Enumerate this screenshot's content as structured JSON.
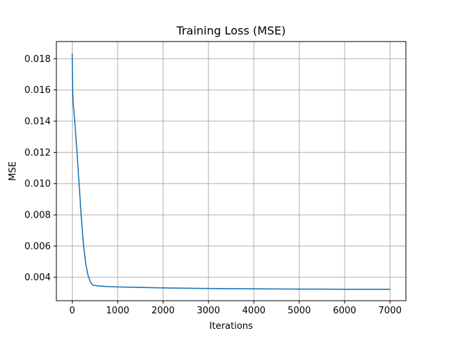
{
  "chart_data": {
    "type": "line",
    "title": "Training Loss (MSE)",
    "xlabel": "Iterations",
    "ylabel": "MSE",
    "xlim": [
      -350,
      7350
    ],
    "ylim": [
      0.0025,
      0.0191
    ],
    "x_ticks": [
      0,
      1000,
      2000,
      3000,
      4000,
      5000,
      6000,
      7000
    ],
    "x_tick_labels": [
      "0",
      "1000",
      "2000",
      "3000",
      "4000",
      "5000",
      "6000",
      "7000"
    ],
    "y_ticks": [
      0.004,
      0.006,
      0.008,
      0.01,
      0.012,
      0.014,
      0.016,
      0.018
    ],
    "y_tick_labels": [
      "0.004",
      "0.006",
      "0.008",
      "0.010",
      "0.012",
      "0.014",
      "0.016",
      "0.018"
    ],
    "grid": true,
    "legend": "none",
    "colors": {
      "line": "#1f77b4",
      "grid": "#b0b0b0",
      "axes": "#000000"
    },
    "series": [
      {
        "x": [
          0,
          5,
          10,
          20,
          40,
          60,
          80,
          100,
          150,
          200,
          250,
          300,
          350,
          400,
          450,
          500,
          550,
          600,
          700,
          800,
          1000,
          1500,
          2000,
          2500,
          3000,
          3500,
          4000,
          4500,
          5000,
          5500,
          6000,
          6500,
          7000
        ],
        "values": [
          0.0183,
          0.0165,
          0.0158,
          0.0152,
          0.0145,
          0.0138,
          0.013,
          0.0122,
          0.01,
          0.0078,
          0.006,
          0.0048,
          0.0041,
          0.0037,
          0.0035,
          0.00347,
          0.00345,
          0.00344,
          0.00342,
          0.0034,
          0.00338,
          0.00335,
          0.00332,
          0.0033,
          0.00328,
          0.00327,
          0.00326,
          0.00325,
          0.00324,
          0.00324,
          0.00323,
          0.00323,
          0.00323
        ]
      }
    ]
  }
}
